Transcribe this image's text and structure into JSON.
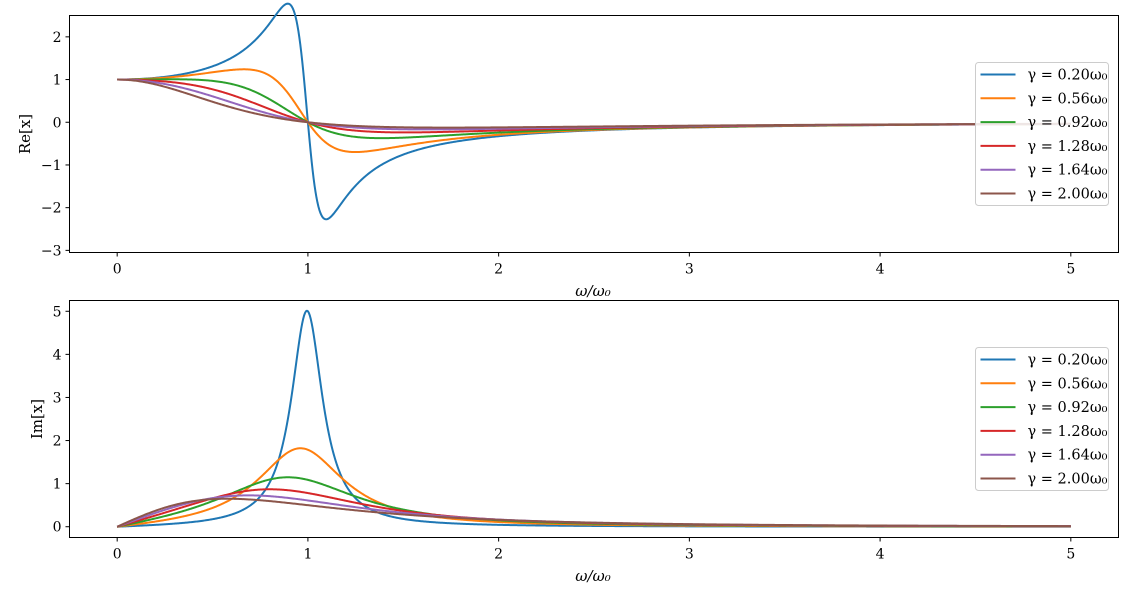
{
  "chart_data": [
    {
      "type": "line",
      "panel": "top",
      "title": "",
      "xlabel": "ω/ω₀",
      "ylabel": "Re[x]",
      "xlim": [
        -0.25,
        5.25
      ],
      "ylim": [
        -3.05,
        2.5
      ],
      "xticks": [
        0,
        1,
        2,
        3,
        4,
        5
      ],
      "xtick_labels": [
        "0",
        "1",
        "2",
        "3",
        "4",
        "5"
      ],
      "yticks": [
        2,
        1,
        0,
        -1,
        -2,
        -3
      ],
      "ytick_labels": [
        "2",
        "1",
        "0",
        "−1",
        "−2",
        "−3"
      ],
      "grid": false,
      "legend_position": "center-right",
      "quantity": "real",
      "x_range": [
        0,
        5
      ],
      "series": [
        {
          "name": "γ = 0.20ω₀",
          "gamma": 0.2,
          "color": "#1f77b4"
        },
        {
          "name": "γ = 0.56ω₀",
          "gamma": 0.56,
          "color": "#ff7f0e"
        },
        {
          "name": "γ = 0.92ω₀",
          "gamma": 0.92,
          "color": "#2ca02c"
        },
        {
          "name": "γ = 1.28ω₀",
          "gamma": 1.28,
          "color": "#d62728"
        },
        {
          "name": "γ = 1.64ω₀",
          "gamma": 1.64,
          "color": "#9467bd"
        },
        {
          "name": "γ = 2.00ω₀",
          "gamma": 2.0,
          "color": "#8c564b"
        }
      ]
    },
    {
      "type": "line",
      "panel": "bottom",
      "title": "",
      "xlabel": "ω/ω₀",
      "ylabel": "Im[x]",
      "xlim": [
        -0.25,
        5.25
      ],
      "ylim": [
        -0.25,
        5.25
      ],
      "xticks": [
        0,
        1,
        2,
        3,
        4,
        5
      ],
      "xtick_labels": [
        "0",
        "1",
        "2",
        "3",
        "4",
        "5"
      ],
      "yticks": [
        5,
        4,
        3,
        2,
        1,
        0
      ],
      "ytick_labels": [
        "5",
        "4",
        "3",
        "2",
        "1",
        "0"
      ],
      "grid": false,
      "legend_position": "center-right",
      "quantity": "imag",
      "x_range": [
        0,
        5
      ],
      "series": [
        {
          "name": "γ = 0.20ω₀",
          "gamma": 0.2,
          "color": "#1f77b4"
        },
        {
          "name": "γ = 0.56ω₀",
          "gamma": 0.56,
          "color": "#ff7f0e"
        },
        {
          "name": "γ = 0.92ω₀",
          "gamma": 0.92,
          "color": "#2ca02c"
        },
        {
          "name": "γ = 1.28ω₀",
          "gamma": 1.28,
          "color": "#d62728"
        },
        {
          "name": "γ = 1.64ω₀",
          "gamma": 1.64,
          "color": "#9467bd"
        },
        {
          "name": "γ = 2.00ω₀",
          "gamma": 2.0,
          "color": "#8c564b"
        }
      ]
    }
  ]
}
